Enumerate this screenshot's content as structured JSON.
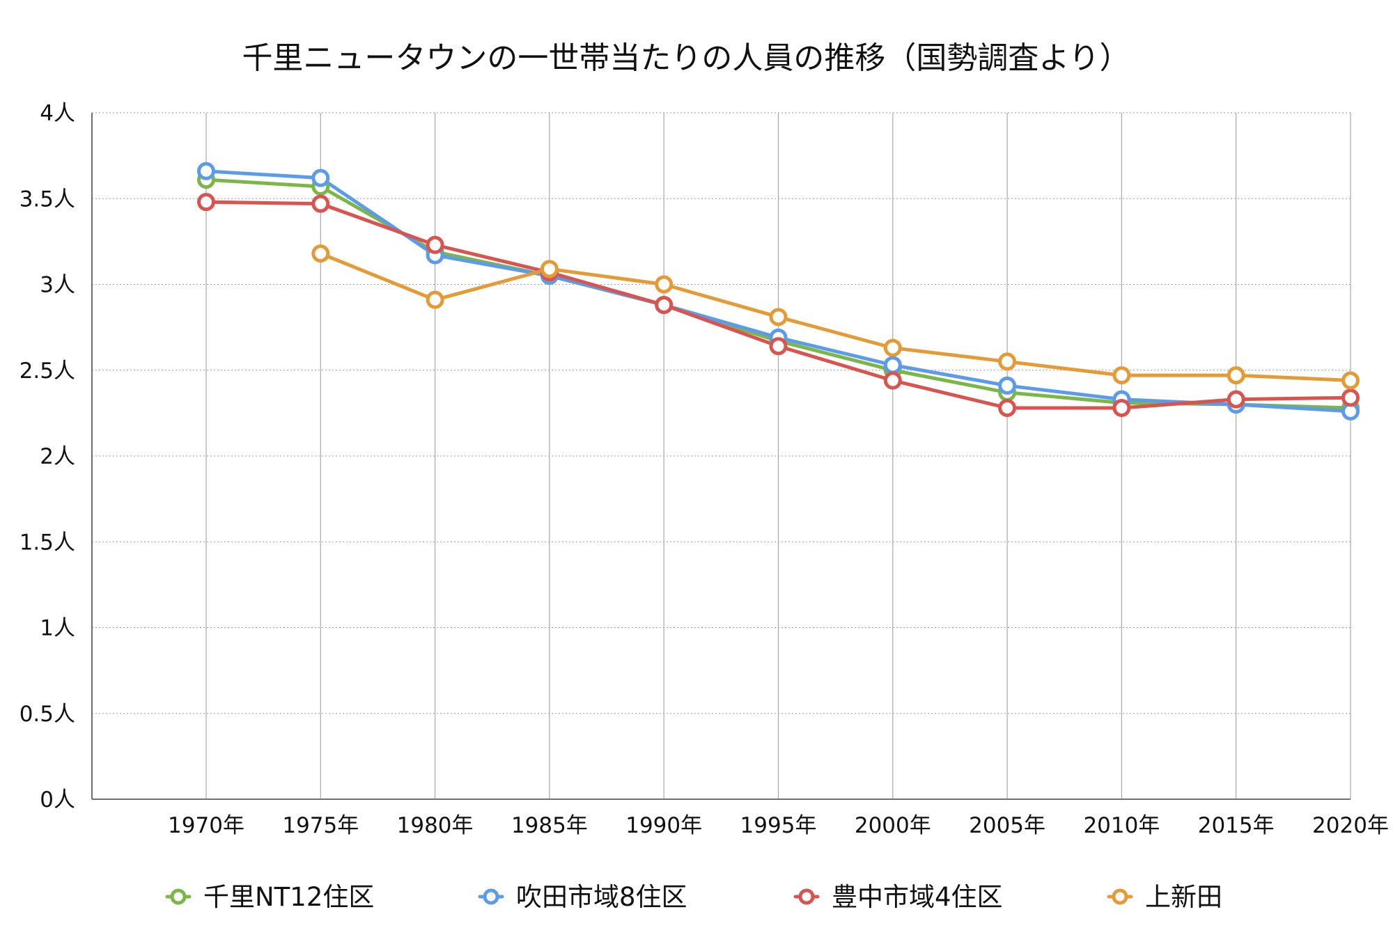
{
  "chart_data": {
    "type": "line",
    "title": "千里ニュータウンの一世帯当たりの人員の推移（国勢調査より）",
    "xlabel": "",
    "ylabel": "",
    "categories": [
      "1970年",
      "1975年",
      "1980年",
      "1985年",
      "1990年",
      "1995年",
      "2000年",
      "2005年",
      "2010年",
      "2015年",
      "2020年"
    ],
    "ylim": [
      0,
      4
    ],
    "y_ticks": [
      {
        "value": 0,
        "label": "0人"
      },
      {
        "value": 0.5,
        "label": "0.5人"
      },
      {
        "value": 1,
        "label": "1人"
      },
      {
        "value": 1.5,
        "label": "1.5人"
      },
      {
        "value": 2,
        "label": "2人"
      },
      {
        "value": 2.5,
        "label": "2.5人"
      },
      {
        "value": 3,
        "label": "3人"
      },
      {
        "value": 3.5,
        "label": "3.5人"
      },
      {
        "value": 4,
        "label": "4人"
      }
    ],
    "grid": true,
    "legend_position": "bottom",
    "series": [
      {
        "name": "千里NT12住区",
        "color": "#7ab648",
        "values": [
          3.61,
          3.57,
          3.19,
          3.05,
          2.88,
          2.67,
          2.5,
          2.37,
          2.31,
          2.3,
          2.28
        ]
      },
      {
        "name": "吹田市域8住区",
        "color": "#5b9bea",
        "values": [
          3.66,
          3.62,
          3.17,
          3.05,
          2.88,
          2.69,
          2.53,
          2.41,
          2.33,
          2.3,
          2.26
        ]
      },
      {
        "name": "豊中市域4住区",
        "color": "#d9534f",
        "values": [
          3.48,
          3.47,
          3.23,
          3.07,
          2.88,
          2.64,
          2.44,
          2.28,
          2.28,
          2.33,
          2.34
        ]
      },
      {
        "name": "上新田",
        "color": "#e59b35",
        "values": [
          null,
          3.18,
          2.91,
          3.09,
          3.0,
          2.81,
          2.63,
          2.55,
          2.47,
          2.47,
          2.44
        ]
      }
    ]
  }
}
